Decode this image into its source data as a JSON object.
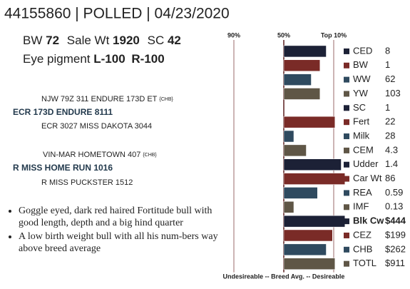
{
  "header": {
    "title": "44155860 | POLLED | 04/23/2020",
    "stats": [
      {
        "label": "BW",
        "value": 72
      },
      {
        "label": "Sale Wt",
        "value": 1920
      },
      {
        "label": "SC",
        "value": 42
      }
    ],
    "eye_pigment": {
      "label": "Eye pigment",
      "values": [
        "L-100",
        "R-100"
      ]
    }
  },
  "pedigree": {
    "sire": {
      "sire": "NJW 79Z 311 ENDURE 173D ET",
      "sire_tag": "{CHB}",
      "name": "ECR 173D ENDURE 8111",
      "dam": "ECR 3027 MISS DAKOTA 3044"
    },
    "dam": {
      "sire": "VIN-MAR HOMETOWN 407",
      "sire_tag": "{CHB}",
      "name": "R MISS HOME RUN 1016",
      "dam": "R MISS PUCKSTER 1512"
    }
  },
  "notes": [
    "Goggle eyed, dark red haired Fortitude bull with good length, depth and a big hind quarter",
    "A low birth weight bull with all his num-bers way above breed average"
  ],
  "chart_data": {
    "type": "bar",
    "orientation": "horizontal",
    "x_label": "Undesireable -- Breed Avg. --  Desireable",
    "categories": [
      "CED",
      "BW",
      "WW",
      "YW",
      "SC",
      "Fert",
      "Milk",
      "CEM",
      "Udder",
      "Car Wt",
      "REA",
      "IMF",
      "Blk Cw",
      "CEZ",
      "CHB",
      "TOTL"
    ],
    "values": [
      16,
      21,
      28,
      21,
      50,
      9,
      42,
      32,
      4,
      1,
      23,
      42,
      1,
      11,
      16,
      9
    ],
    "epds": [
      8,
      1,
      62,
      103,
      1,
      22,
      28,
      4.3,
      1.4,
      86,
      0.59,
      0.13,
      "$444",
      "$199",
      "$262",
      "$911"
    ],
    "colors": [
      "#1c2136",
      "#7a2b27",
      "#2f4a5f",
      "#5f5646",
      "#1c2136",
      "#7a2b27",
      "#2f4a5f",
      "#5f5646",
      "#1c2136",
      "#7a2b27",
      "#2f4a5f",
      "#5f5646",
      "#1c2136",
      "#7a2b27",
      "#2f4a5f",
      "#5f5646"
    ],
    "xlim": [
      100,
      0
    ],
    "xticks": [
      {
        "value": 90,
        "label": "90%"
      },
      {
        "value": 50,
        "label": "50%"
      },
      {
        "value": 10,
        "label": "Top 10%"
      }
    ],
    "grid": true
  }
}
